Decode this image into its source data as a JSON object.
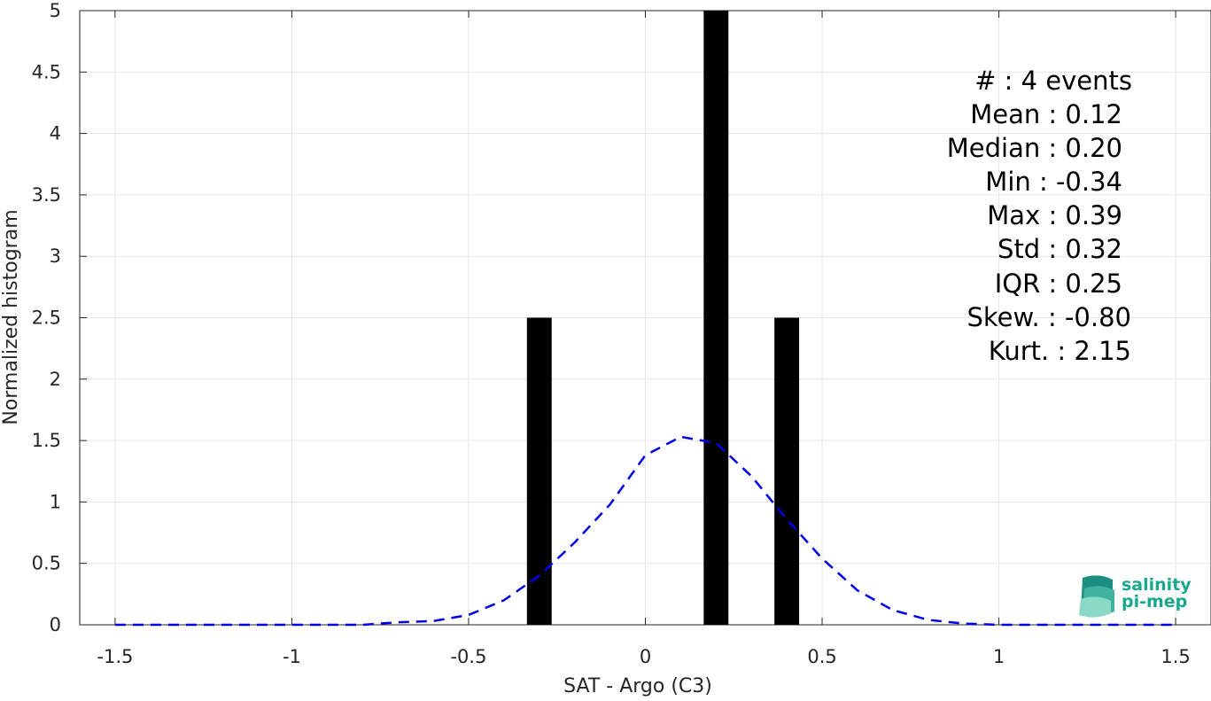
{
  "chart_data": {
    "type": "bar",
    "xlabel": "SAT - Argo (C3)",
    "ylabel": "Normalized histogram",
    "xlim": [
      -1.6,
      1.6
    ],
    "ylim": [
      0,
      5
    ],
    "grid": true,
    "xticks": [
      -1.5,
      -1,
      -0.5,
      0,
      0.5,
      1,
      1.5
    ],
    "xtick_labels": [
      "-1.5",
      "-1",
      "-0.5",
      "0",
      "0.5",
      "1",
      "1.5"
    ],
    "yticks": [
      0,
      0.5,
      1,
      1.5,
      2,
      2.5,
      3,
      3.5,
      4,
      4.5,
      5
    ],
    "ytick_labels": [
      "0",
      "0.5",
      "1",
      "1.5",
      "2",
      "2.5",
      "3",
      "3.5",
      "4",
      "4.5",
      "5"
    ],
    "bars": {
      "color": "#000000",
      "bin_width": 0.07,
      "centers": [
        -0.3,
        0.2,
        0.4
      ],
      "values": [
        2.5,
        5,
        2.5
      ]
    },
    "fit_curve": {
      "style": "dashed",
      "color": "#0000ee",
      "x": [
        -1.5,
        -1.4,
        -1.3,
        -1.2,
        -1.1,
        -1.0,
        -0.9,
        -0.8,
        -0.7,
        -0.6,
        -0.5,
        -0.4,
        -0.3,
        -0.2,
        -0.1,
        0.0,
        0.1,
        0.2,
        0.3,
        0.4,
        0.5,
        0.6,
        0.7,
        0.8,
        0.9,
        1.0,
        1.1,
        1.2,
        1.3,
        1.4,
        1.5
      ],
      "y": [
        0.0,
        0.0,
        0.0,
        0.0,
        0.0,
        0.0,
        0.0,
        0.0,
        0.02,
        0.03,
        0.08,
        0.2,
        0.4,
        0.67,
        0.98,
        1.38,
        1.53,
        1.48,
        1.21,
        0.86,
        0.54,
        0.28,
        0.12,
        0.04,
        0.01,
        0.0,
        0.0,
        0.0,
        0.0,
        0.0,
        0.0
      ]
    },
    "annotations": {
      "count": "#  : 4 events",
      "mean": "Mean : 0.12",
      "median": "Median : 0.20",
      "min": "Min : -0.34",
      "max": "Max : 0.39",
      "std": "Std : 0.32",
      "iqr": "IQR : 0.25",
      "skew": "Skew. : -0.80",
      "kurt": "Kurt. : 2.15"
    }
  },
  "logo": {
    "line1": "salinity",
    "line2": "pi-mep",
    "color": "#1aa88c"
  }
}
